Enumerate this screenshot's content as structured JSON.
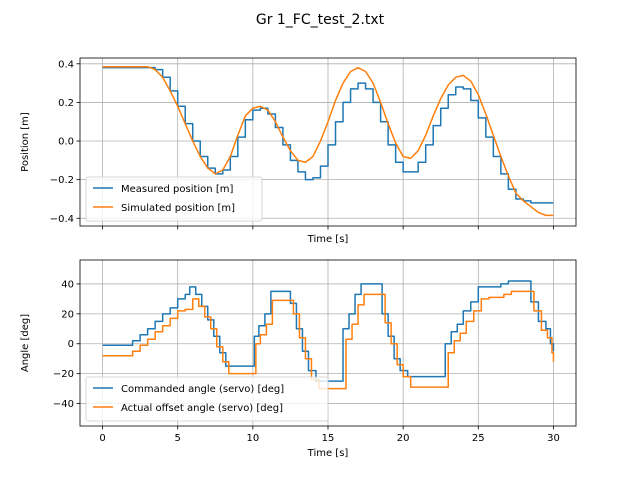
{
  "title": "Gr 1_FC_test_2.txt",
  "colors": {
    "series1": "#1f77b4",
    "series2": "#ff7f0e",
    "grid": "#b0b0b0"
  },
  "chart_data": [
    {
      "type": "line",
      "xlabel": "Time [s]",
      "ylabel": "Position [m]",
      "xlim": [
        -1.5,
        31.5
      ],
      "ylim": [
        -0.44,
        0.43
      ],
      "xticks": [
        0,
        5,
        10,
        15,
        20,
        25,
        30
      ],
      "show_xtick_labels": false,
      "yticks": [
        -0.4,
        -0.2,
        0.0,
        0.2,
        0.4
      ],
      "ytick_labels": [
        "−0.4",
        "−0.2",
        "0.0",
        "0.2",
        "0.4"
      ],
      "grid": true,
      "legend_position": "lower-left",
      "series": [
        {
          "name": "Measured position [m]",
          "color": "#1f77b4",
          "step": true,
          "x": [
            0,
            1,
            2,
            3,
            3.5,
            4,
            4.5,
            5,
            5.5,
            6,
            6.5,
            7,
            7.5,
            8,
            8.5,
            9,
            9.5,
            10,
            10.5,
            11,
            11.5,
            12,
            12.5,
            13,
            13.5,
            14,
            14.5,
            15,
            15.5,
            16,
            16.5,
            17,
            17.5,
            18,
            18.5,
            19,
            19.5,
            20,
            20.5,
            21,
            21.5,
            22,
            22.5,
            23,
            23.5,
            24,
            24.5,
            25,
            25.5,
            26,
            26.5,
            27,
            27.5,
            28,
            28.5,
            29,
            29.5,
            30
          ],
          "y": [
            0.38,
            0.38,
            0.38,
            0.38,
            0.37,
            0.33,
            0.26,
            0.18,
            0.09,
            0.0,
            -0.08,
            -0.14,
            -0.17,
            -0.15,
            -0.08,
            0.02,
            0.11,
            0.16,
            0.17,
            0.14,
            0.07,
            -0.02,
            -0.1,
            -0.16,
            -0.2,
            -0.19,
            -0.13,
            -0.02,
            0.1,
            0.2,
            0.27,
            0.3,
            0.27,
            0.2,
            0.1,
            -0.02,
            -0.11,
            -0.16,
            -0.16,
            -0.11,
            -0.02,
            0.08,
            0.17,
            0.24,
            0.28,
            0.27,
            0.21,
            0.12,
            0.02,
            -0.08,
            -0.17,
            -0.25,
            -0.3,
            -0.31,
            -0.32,
            -0.32,
            -0.32,
            -0.32
          ]
        },
        {
          "name": "Simulated position [m]",
          "color": "#ff7f0e",
          "step": false,
          "x": [
            0,
            1,
            2,
            3,
            3.5,
            4,
            4.5,
            5,
            5.5,
            6,
            6.5,
            7,
            7.5,
            8,
            8.5,
            9,
            9.5,
            10,
            10.5,
            11,
            11.5,
            12,
            12.5,
            13,
            13.5,
            14,
            14.5,
            15,
            15.5,
            16,
            16.5,
            17,
            17.5,
            18,
            18.5,
            19,
            19.5,
            20,
            20.5,
            21,
            21.5,
            22,
            22.5,
            23,
            23.5,
            24,
            24.5,
            25,
            25.5,
            26,
            26.5,
            27,
            27.5,
            28,
            28.5,
            29,
            29.5,
            30
          ],
          "y": [
            0.385,
            0.385,
            0.385,
            0.385,
            0.37,
            0.33,
            0.26,
            0.18,
            0.09,
            0.0,
            -0.08,
            -0.14,
            -0.17,
            -0.15,
            -0.08,
            0.03,
            0.13,
            0.17,
            0.18,
            0.16,
            0.1,
            0.02,
            -0.05,
            -0.1,
            -0.11,
            -0.08,
            0.0,
            0.1,
            0.21,
            0.3,
            0.36,
            0.38,
            0.36,
            0.3,
            0.2,
            0.09,
            -0.01,
            -0.08,
            -0.09,
            -0.05,
            0.03,
            0.13,
            0.22,
            0.29,
            0.33,
            0.34,
            0.31,
            0.24,
            0.14,
            0.03,
            -0.08,
            -0.18,
            -0.27,
            -0.31,
            -0.34,
            -0.37,
            -0.385,
            -0.385
          ]
        }
      ]
    },
    {
      "type": "line",
      "xlabel": "Time [s]",
      "ylabel": "Angle [deg]",
      "xlim": [
        -1.5,
        31.5
      ],
      "ylim": [
        -55,
        56
      ],
      "xticks": [
        0,
        5,
        10,
        15,
        20,
        25,
        30
      ],
      "show_xtick_labels": true,
      "yticks": [
        -40,
        -20,
        0,
        20,
        40
      ],
      "ytick_labels": [
        "−40",
        "−20",
        "0",
        "20",
        "40"
      ],
      "grid": true,
      "legend_position": "lower-left",
      "series": [
        {
          "name": "Commanded angle (servo) [deg]",
          "color": "#1f77b4",
          "step": true,
          "x": [
            0,
            1.7,
            2.0,
            2.5,
            3.0,
            3.5,
            4.0,
            4.5,
            5.0,
            5.5,
            5.8,
            6.2,
            6.6,
            7.0,
            7.4,
            7.8,
            8.2,
            9.8,
            10.1,
            10.4,
            10.8,
            11.2,
            12.2,
            12.5,
            12.9,
            13.3,
            13.7,
            14.2,
            15.6,
            16.0,
            16.4,
            16.8,
            17.2,
            18.3,
            18.6,
            19.0,
            19.4,
            19.8,
            20.3,
            21.6,
            22.5,
            22.8,
            23.2,
            23.6,
            24.0,
            24.5,
            25.0,
            25.5,
            26.0,
            26.5,
            27.0,
            27.5,
            28.0,
            28.5,
            29.0,
            29.5,
            29.8,
            30.0
          ],
          "y": [
            -1,
            -1,
            2,
            6,
            10,
            15,
            20,
            24,
            30,
            33,
            38,
            33,
            25,
            16,
            5,
            -6,
            -15,
            -15,
            5,
            12,
            20,
            35,
            35,
            27,
            10,
            -5,
            -18,
            -25,
            -25,
            10,
            20,
            33,
            40,
            40,
            20,
            5,
            -10,
            -18,
            -22,
            -22,
            -22,
            0,
            8,
            13,
            22,
            28,
            38,
            38,
            38,
            40,
            42,
            42,
            42,
            28,
            15,
            10,
            0,
            -5
          ]
        },
        {
          "name": "Actual offset angle (servo) [deg]",
          "color": "#ff7f0e",
          "step": true,
          "x": [
            0,
            1.7,
            2.0,
            2.5,
            3.0,
            3.5,
            4.0,
            4.5,
            5.0,
            5.5,
            6.0,
            6.4,
            6.8,
            7.2,
            7.6,
            8.0,
            8.4,
            9.9,
            10.2,
            10.5,
            10.9,
            11.3,
            12.4,
            12.7,
            13.1,
            13.5,
            13.9,
            14.4,
            15.8,
            16.2,
            16.6,
            17.0,
            17.4,
            18.5,
            18.8,
            19.2,
            19.6,
            20.0,
            20.5,
            21.8,
            22.6,
            23.0,
            23.4,
            23.8,
            24.2,
            24.7,
            25.2,
            25.7,
            26.2,
            26.7,
            27.2,
            27.7,
            28.2,
            28.7,
            29.2,
            29.6,
            29.9,
            30.0
          ],
          "y": [
            -8,
            -8,
            -5,
            -1,
            3,
            8,
            12,
            17,
            22,
            23,
            30,
            25,
            18,
            10,
            -2,
            -12,
            -20,
            -20,
            0,
            6,
            13,
            29,
            29,
            20,
            4,
            -10,
            -24,
            -30,
            -30,
            3,
            13,
            26,
            33,
            33,
            14,
            0,
            -14,
            -22,
            -29,
            -29,
            -29,
            -6,
            2,
            7,
            15,
            22,
            30,
            31,
            31,
            33,
            35,
            35,
            35,
            22,
            9,
            4,
            -6,
            -12
          ]
        }
      ]
    }
  ]
}
